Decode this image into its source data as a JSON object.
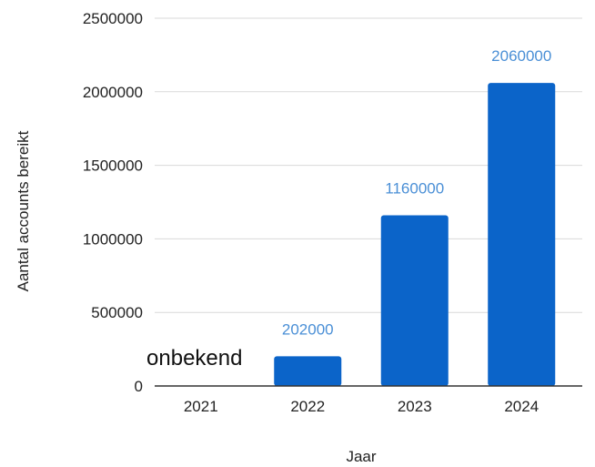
{
  "chart_data": {
    "type": "bar",
    "categories": [
      "2021",
      "2022",
      "2023",
      "2024"
    ],
    "values": [
      null,
      202000,
      1160000,
      2060000
    ],
    "data_labels": [
      "",
      "202000",
      "1160000",
      "2060000"
    ],
    "annotations": [
      {
        "category": "2021",
        "text": "onbekend"
      }
    ],
    "xlabel": "Jaar",
    "ylabel": "Aantal accounts bereikt",
    "ylim": [
      0,
      2500000
    ],
    "yticks": [
      0,
      500000,
      1000000,
      1500000,
      2000000,
      2500000
    ],
    "ytick_labels": [
      "0",
      "500000",
      "1000000",
      "1500000",
      "2000000",
      "2500000"
    ],
    "grid": true,
    "legend": "none",
    "colors": {
      "bar": "#0b64c9",
      "data_label": "#4a8fd6",
      "grid": "#d9d9d9",
      "baseline": "#333333"
    }
  }
}
